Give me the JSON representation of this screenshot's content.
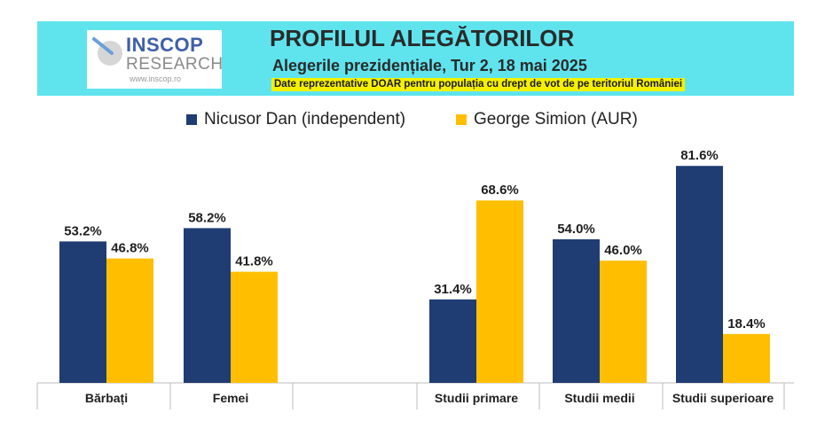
{
  "header": {
    "logo_line1": "INSCOP",
    "logo_line2": "RESEARCH",
    "logo_url": "www.inscop.ro",
    "title": "PROFILUL ALEGĂTORILOR",
    "subtitle": "Alegerile prezidențiale, Tur 2, 18 mai 2025",
    "note": "Date reprezentative DOAR pentru populația cu drept de vot de pe teritoriul României"
  },
  "colors": {
    "header_bg": "#5fe4ee",
    "note_bg": "#f5f000",
    "series_1": "#1f3d73",
    "series_2": "#ffbf00"
  },
  "chart_data": {
    "type": "bar",
    "categories": [
      "Bărbați",
      "Femei",
      "",
      "Studii primare",
      "Studii medii",
      "Studii superioare"
    ],
    "series": [
      {
        "name": "Nicusor Dan (independent)",
        "values": [
          53.2,
          58.2,
          null,
          31.4,
          54.0,
          81.6
        ],
        "labels": [
          "53.2%",
          "58.2%",
          "",
          "31.4%",
          "54.0%",
          "81.6%"
        ],
        "color": "#1f3d73"
      },
      {
        "name": "George Simion (AUR)",
        "values": [
          46.8,
          41.8,
          null,
          68.6,
          46.0,
          18.4
        ],
        "labels": [
          "46.8%",
          "41.8%",
          "",
          "68.6%",
          "46.0%",
          "18.4%"
        ],
        "color": "#ffbf00"
      }
    ],
    "ylim": [
      0,
      100
    ],
    "grid": false,
    "legend_position": "top-center",
    "title": "",
    "xlabel": "",
    "ylabel": ""
  }
}
